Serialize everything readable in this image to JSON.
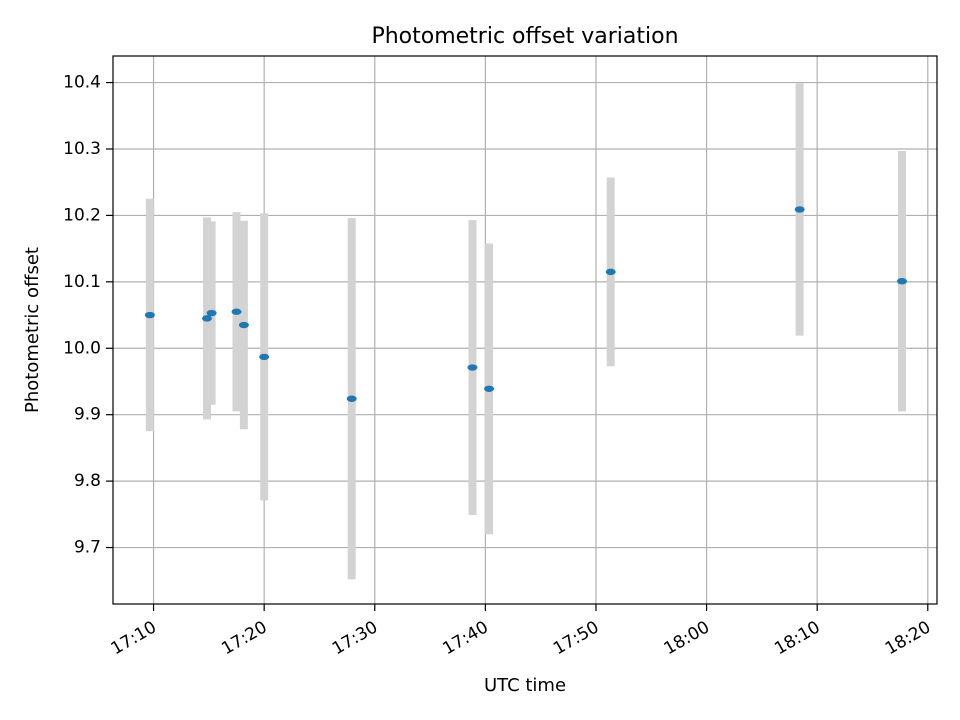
{
  "chart_data": {
    "type": "scatter",
    "title": "Photometric offset variation",
    "xlabel": "UTC time",
    "ylabel": "Photometric offset",
    "grid": true,
    "xlim": [
      "17:06:20",
      "18:20:50"
    ],
    "ylim": [
      9.615,
      10.44
    ],
    "x_ticks": [
      "17:10",
      "17:20",
      "17:30",
      "17:40",
      "17:50",
      "18:00",
      "18:10",
      "18:20"
    ],
    "y_ticks": [
      9.7,
      9.8,
      9.9,
      10.0,
      10.1,
      10.2,
      10.3,
      10.4
    ],
    "y_tick_labels": [
      "9.7",
      "9.8",
      "9.9",
      "10.0",
      "10.1",
      "10.2",
      "10.3",
      "10.4"
    ],
    "colors": {
      "point": "#1f77b4",
      "errorbar": "#d3d3d3",
      "grid": "#b0b0b0"
    },
    "points": [
      {
        "time": "17:09:40",
        "y": 10.05,
        "err": 0.175
      },
      {
        "time": "17:14:50",
        "y": 10.045,
        "err": 0.152
      },
      {
        "time": "17:15:15",
        "y": 10.053,
        "err": 0.138
      },
      {
        "time": "17:17:30",
        "y": 10.055,
        "err": 0.15
      },
      {
        "time": "17:18:10",
        "y": 10.035,
        "err": 0.157
      },
      {
        "time": "17:20:00",
        "y": 9.987,
        "err": 0.216
      },
      {
        "time": "17:27:55",
        "y": 9.924,
        "err": 0.272
      },
      {
        "time": "17:38:50",
        "y": 9.971,
        "err": 0.222
      },
      {
        "time": "17:40:20",
        "y": 9.939,
        "err": 0.219
      },
      {
        "time": "17:51:20",
        "y": 10.115,
        "err": 0.142
      },
      {
        "time": "18:08:25",
        "y": 10.209,
        "err": 0.19
      },
      {
        "time": "18:17:40",
        "y": 10.101,
        "err": 0.196
      }
    ]
  }
}
